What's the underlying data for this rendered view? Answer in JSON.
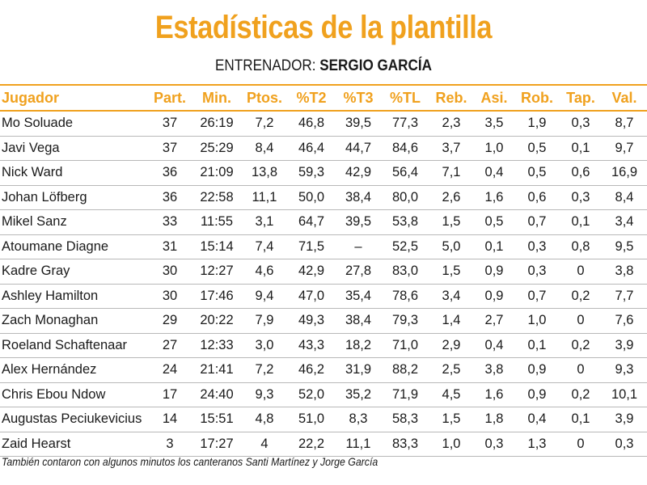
{
  "title": "Estadísticas de la plantilla",
  "coach_label": "ENTRENADOR: ",
  "coach_name": "SERGIO GARCÍA",
  "columns": [
    "Jugador",
    "Part.",
    "Min.",
    "Ptos.",
    "%T2",
    "%T3",
    "%TL",
    "Reb.",
    "Asi.",
    "Rob.",
    "Tap.",
    "Val."
  ],
  "rows": [
    [
      "Mo Soluade",
      "37",
      "26:19",
      "7,2",
      "46,8",
      "39,5",
      "77,3",
      "2,3",
      "3,5",
      "1,9",
      "0,3",
      "8,7"
    ],
    [
      "Javi Vega",
      "37",
      "25:29",
      "8,4",
      "46,4",
      "44,7",
      "84,6",
      "3,7",
      "1,0",
      "0,5",
      "0,1",
      "9,7"
    ],
    [
      "Nick Ward",
      "36",
      "21:09",
      "13,8",
      "59,3",
      "42,9",
      "56,4",
      "7,1",
      "0,4",
      "0,5",
      "0,6",
      "16,9"
    ],
    [
      "Johan Löfberg",
      "36",
      "22:58",
      "11,1",
      "50,0",
      "38,4",
      "80,0",
      "2,6",
      "1,6",
      "0,6",
      "0,3",
      "8,4"
    ],
    [
      "Mikel Sanz",
      "33",
      "11:55",
      "3,1",
      "64,7",
      "39,5",
      "53,8",
      "1,5",
      "0,5",
      "0,7",
      "0,1",
      "3,4"
    ],
    [
      "Atoumane Diagne",
      "31",
      "15:14",
      "7,4",
      "71,5",
      "–",
      "52,5",
      "5,0",
      "0,1",
      "0,3",
      "0,8",
      "9,5"
    ],
    [
      "Kadre Gray",
      "30",
      "12:27",
      "4,6",
      "42,9",
      "27,8",
      "83,0",
      "1,5",
      "0,9",
      "0,3",
      "0",
      "3,8"
    ],
    [
      "Ashley Hamilton",
      "30",
      "17:46",
      "9,4",
      "47,0",
      "35,4",
      "78,6",
      "3,4",
      "0,9",
      "0,7",
      "0,2",
      "7,7"
    ],
    [
      "Zach Monaghan",
      "29",
      "20:22",
      "7,9",
      "49,3",
      "38,4",
      "79,3",
      "1,4",
      "2,7",
      "1,0",
      "0",
      "7,6"
    ],
    [
      "Roeland Schaftenaar",
      "27",
      "12:33",
      "3,0",
      "43,3",
      "18,2",
      "71,0",
      "2,9",
      "0,4",
      "0,1",
      "0,2",
      "3,9"
    ],
    [
      "Alex Hernández",
      "24",
      "21:41",
      "7,2",
      "46,2",
      "31,9",
      "88,2",
      "2,5",
      "3,8",
      "0,9",
      "0",
      "9,3"
    ],
    [
      "Chris Ebou Ndow",
      "17",
      "24:40",
      "9,3",
      "52,0",
      "35,2",
      "71,9",
      "4,5",
      "1,6",
      "0,9",
      "0,2",
      "10,1"
    ],
    [
      "Augustas Peciukevicius",
      "14",
      "15:51",
      "4,8",
      "51,0",
      "8,3",
      "58,3",
      "1,5",
      "1,8",
      "0,4",
      "0,1",
      "3,9"
    ],
    [
      "Zaid Hearst",
      "3",
      "17:27",
      "4",
      "22,2",
      "11,1",
      "83,3",
      "1,0",
      "0,3",
      "1,3",
      "0",
      "0,3"
    ]
  ],
  "note": "También contaron con algunos minutos los canteranos Santi Martínez y Jorge García"
}
